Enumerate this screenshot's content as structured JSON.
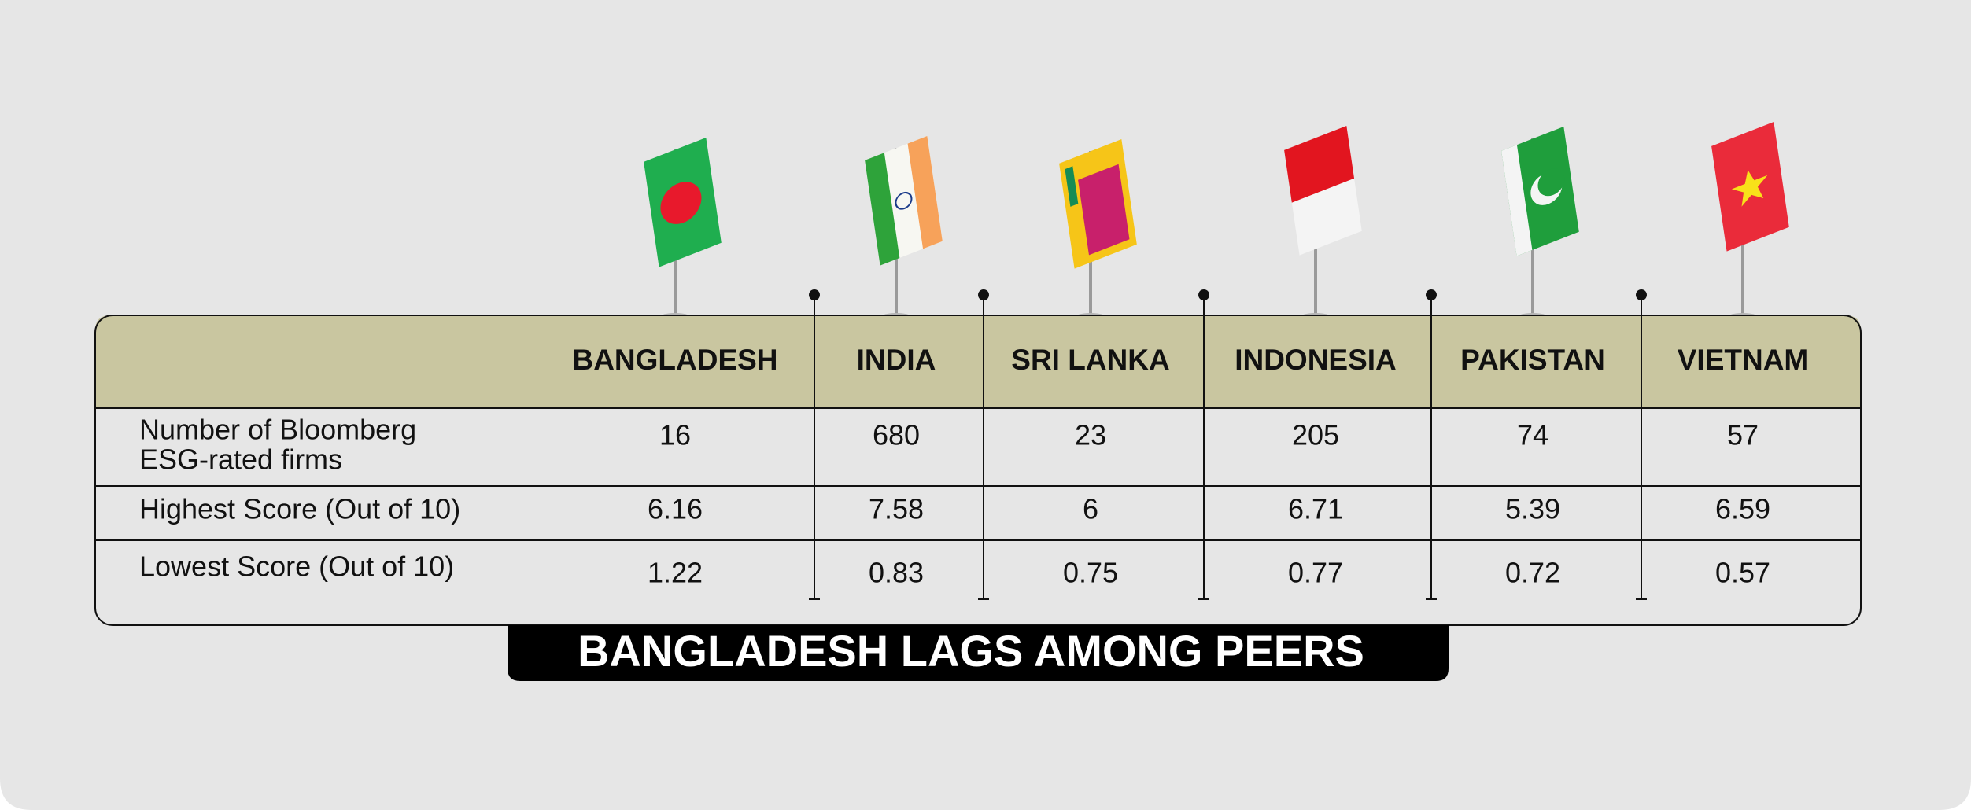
{
  "table": {
    "columns": [
      "BANGLADESH",
      "INDIA",
      "SRI LANKA",
      "INDONESIA",
      "PAKISTAN",
      "VIETNAM"
    ],
    "rows": [
      {
        "label": [
          "Number of Bloomberg",
          "ESG-rated firms"
        ],
        "values": [
          "16",
          "680",
          "23",
          "205",
          "74",
          "57"
        ]
      },
      {
        "label": [
          "Highest Score (Out of 10)"
        ],
        "values": [
          "6.16",
          "7.58",
          "6",
          "6.71",
          "5.39",
          "6.59"
        ]
      },
      {
        "label": [
          "Lowest Score (Out of 10)"
        ],
        "values": [
          "1.22",
          "0.83",
          "0.75",
          "0.77",
          "0.72",
          "0.57"
        ]
      }
    ]
  },
  "title": "BANGLADESH LAGS AMONG PEERS"
}
